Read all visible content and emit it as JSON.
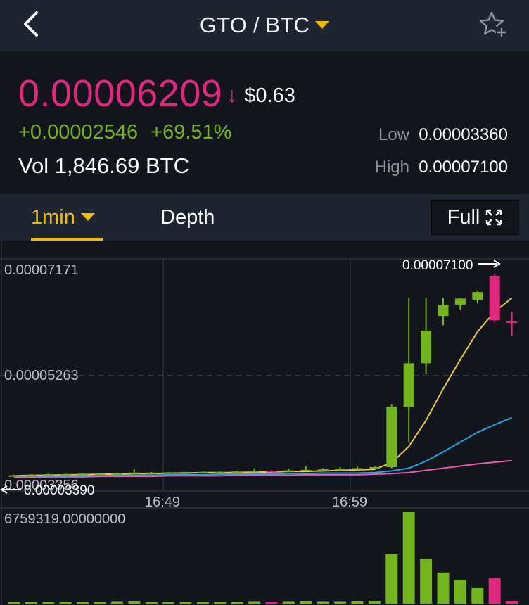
{
  "header": {
    "pair": "GTO / BTC",
    "back_icon": "chevron-left-icon",
    "favorite_icon": "star-plus-icon"
  },
  "ticker": {
    "last_price": "0.00006209",
    "direction_arrow": "↓",
    "fiat_price": "$0.63",
    "change_abs": "+0.00002546",
    "change_pct": "+69.51%",
    "volume": "Vol 1,846.69 BTC",
    "low_label": "Low",
    "low_value": "0.00003360",
    "high_label": "High",
    "high_value": "0.00007100"
  },
  "tabs": {
    "interval": "1min",
    "depth": "Depth",
    "full": "Full"
  },
  "colors": {
    "up": "#72b41b",
    "down": "#e0287e",
    "accent": "#f0b90b",
    "ma_fast": "#f0c93a",
    "ma_mid": "#1fa6e0",
    "ma_slow": "#e35bb4",
    "background": "#12151c",
    "panel": "#1f2530"
  },
  "chart_data": {
    "type": "candlestick",
    "y_labels": [
      "0.00007171",
      "0.00005263",
      "0.00003356"
    ],
    "x_labels": [
      "16:49",
      "16:59"
    ],
    "high_marker": "0.00007100",
    "low_marker": "0.00003390",
    "volume_max_label": "6759319.00000000",
    "ylim": [
      3.1e-05,
      7.37e-05
    ],
    "candles": [
      {
        "o": 3.38e-05,
        "h": 3.4e-05,
        "l": 3.37e-05,
        "c": 3.39e-05,
        "v": 0.01
      },
      {
        "o": 3.39e-05,
        "h": 3.41e-05,
        "l": 3.38e-05,
        "c": 3.4e-05,
        "v": 0.01
      },
      {
        "o": 3.4e-05,
        "h": 3.42e-05,
        "l": 3.39e-05,
        "c": 3.41e-05,
        "v": 0.015
      },
      {
        "o": 3.41e-05,
        "h": 3.42e-05,
        "l": 3.4e-05,
        "c": 3.41e-05,
        "v": 0.01
      },
      {
        "o": 3.41e-05,
        "h": 3.43e-05,
        "l": 3.4e-05,
        "c": 3.42e-05,
        "v": 0.01
      },
      {
        "o": 3.42e-05,
        "h": 3.43e-05,
        "l": 3.41e-05,
        "c": 3.42e-05,
        "v": 0.015
      },
      {
        "o": 3.42e-05,
        "h": 3.44e-05,
        "l": 3.41e-05,
        "c": 3.43e-05,
        "v": 0.02
      },
      {
        "o": 3.43e-05,
        "h": 3.5e-05,
        "l": 3.42e-05,
        "c": 3.44e-05,
        "v": 0.025
      },
      {
        "o": 3.44e-05,
        "h": 3.45e-05,
        "l": 3.43e-05,
        "c": 3.44e-05,
        "v": 0.01
      },
      {
        "o": 3.44e-05,
        "h": 3.45e-05,
        "l": 3.43e-05,
        "c": 3.44e-05,
        "v": 0.01
      },
      {
        "o": 3.44e-05,
        "h": 3.45e-05,
        "l": 3.43e-05,
        "c": 3.45e-05,
        "v": 0.01
      },
      {
        "o": 3.45e-05,
        "h": 3.46e-05,
        "l": 3.44e-05,
        "c": 3.45e-05,
        "v": 0.01
      },
      {
        "o": 3.45e-05,
        "h": 3.46e-05,
        "l": 3.44e-05,
        "c": 3.45e-05,
        "v": 0.01
      },
      {
        "o": 3.45e-05,
        "h": 3.47e-05,
        "l": 3.44e-05,
        "c": 3.46e-05,
        "v": 0.015
      },
      {
        "o": 3.46e-05,
        "h": 3.52e-05,
        "l": 3.45e-05,
        "c": 3.47e-05,
        "v": 0.02
      },
      {
        "o": 3.47e-05,
        "h": 3.48e-05,
        "l": 3.46e-05,
        "c": 3.46e-05,
        "v": 0.015
      },
      {
        "o": 3.46e-05,
        "h": 3.51e-05,
        "l": 3.45e-05,
        "c": 3.48e-05,
        "v": 0.02
      },
      {
        "o": 3.48e-05,
        "h": 3.56e-05,
        "l": 3.46e-05,
        "c": 3.49e-05,
        "v": 0.025
      },
      {
        "o": 3.49e-05,
        "h": 3.52e-05,
        "l": 3.47e-05,
        "c": 3.5e-05,
        "v": 0.02
      },
      {
        "o": 3.5e-05,
        "h": 3.54e-05,
        "l": 3.48e-05,
        "c": 3.51e-05,
        "v": 0.02
      },
      {
        "o": 3.51e-05,
        "h": 3.55e-05,
        "l": 3.49e-05,
        "c": 3.52e-05,
        "v": 0.025
      },
      {
        "o": 3.52e-05,
        "h": 3.56e-05,
        "l": 3.5e-05,
        "c": 3.54e-05,
        "v": 0.03
      },
      {
        "o": 3.54e-05,
        "h": 4.7e-05,
        "l": 3.52e-05,
        "c": 4.65e-05,
        "v": 0.54
      },
      {
        "o": 4.65e-05,
        "h": 6.65e-05,
        "l": 4e-05,
        "c": 5.45e-05,
        "v": 1.0
      },
      {
        "o": 5.45e-05,
        "h": 6.65e-05,
        "l": 5.25e-05,
        "c": 6.05e-05,
        "v": 0.49
      },
      {
        "o": 6.32e-05,
        "h": 6.65e-05,
        "l": 6.15e-05,
        "c": 6.52e-05,
        "v": 0.34
      },
      {
        "o": 6.53e-05,
        "h": 6.65e-05,
        "l": 6.43e-05,
        "c": 6.64e-05,
        "v": 0.26
      },
      {
        "o": 6.62e-05,
        "h": 6.79e-05,
        "l": 6.55e-05,
        "c": 6.76e-05,
        "v": 0.17
      },
      {
        "o": 7.05e-05,
        "h": 7.1e-05,
        "l": 6.2e-05,
        "c": 6.24e-05,
        "v": 0.28
      },
      {
        "o": 6.22e-05,
        "h": 6.4e-05,
        "l": 5.95e-05,
        "c": 6.2e-05,
        "v": 0.03
      }
    ],
    "ma_fast": [
      3.38e-05,
      3.39e-05,
      3.39e-05,
      3.4e-05,
      3.4e-05,
      3.41e-05,
      3.41e-05,
      3.42e-05,
      3.42e-05,
      3.43e-05,
      3.43e-05,
      3.44e-05,
      3.44e-05,
      3.44e-05,
      3.45e-05,
      3.45e-05,
      3.46e-05,
      3.46e-05,
      3.47e-05,
      3.48e-05,
      3.49e-05,
      3.5e-05,
      3.62e-05,
      3.92e-05,
      4.4e-05,
      4.98e-05,
      5.52e-05,
      6.03e-05,
      6.4e-05,
      6.65e-05
    ],
    "ma_mid": [
      3.36e-05,
      3.37e-05,
      3.37e-05,
      3.38e-05,
      3.38e-05,
      3.38e-05,
      3.39e-05,
      3.39e-05,
      3.39e-05,
      3.4e-05,
      3.4e-05,
      3.4e-05,
      3.41e-05,
      3.41e-05,
      3.41e-05,
      3.41e-05,
      3.42e-05,
      3.42e-05,
      3.43e-05,
      3.43e-05,
      3.43e-05,
      3.44e-05,
      3.47e-05,
      3.52e-05,
      3.65e-05,
      3.82e-05,
      4e-05,
      4.18e-05,
      4.32e-05,
      4.45e-05
    ],
    "ma_slow": [
      3.35e-05,
      3.35e-05,
      3.36e-05,
      3.36e-05,
      3.36e-05,
      3.37e-05,
      3.37e-05,
      3.37e-05,
      3.37e-05,
      3.38e-05,
      3.38e-05,
      3.38e-05,
      3.38e-05,
      3.39e-05,
      3.39e-05,
      3.39e-05,
      3.39e-05,
      3.4e-05,
      3.4e-05,
      3.4e-05,
      3.4e-05,
      3.41e-05,
      3.42e-05,
      3.44e-05,
      3.48e-05,
      3.52e-05,
      3.56e-05,
      3.6e-05,
      3.63e-05,
      3.66e-05
    ]
  }
}
